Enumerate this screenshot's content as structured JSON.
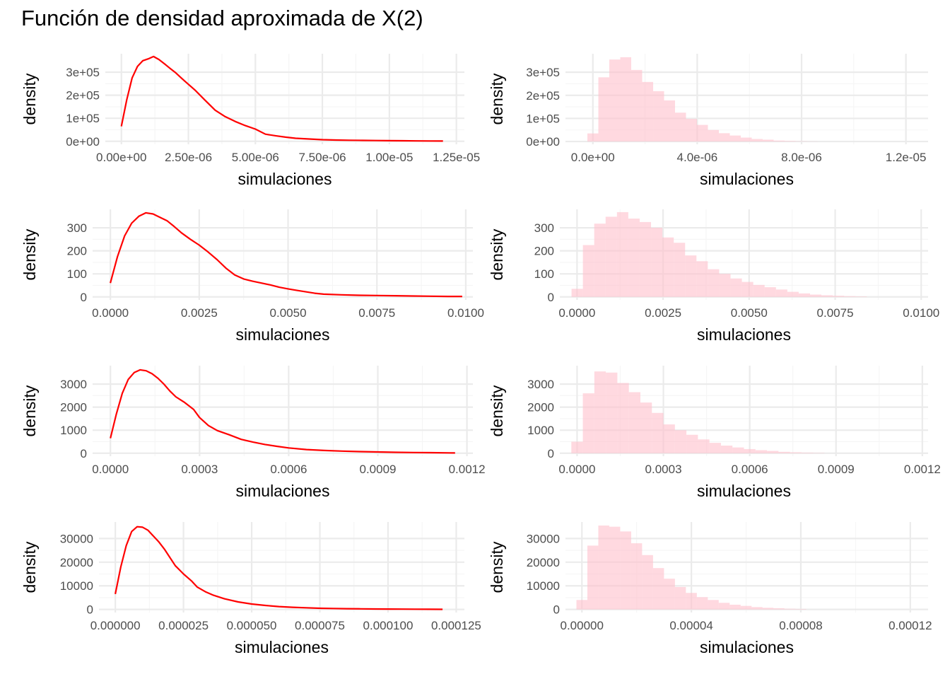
{
  "title": "Función de densidad aproximada de X(2)",
  "colors": {
    "density_line": "#ff0000",
    "histogram_fill": "#ffc0cb",
    "grid_major": "#ebebeb",
    "grid_minor": "#f5f5f5",
    "tick_text": "#4d4d4d"
  },
  "chart_data": [
    {
      "type": "line",
      "row": 1,
      "col": 1,
      "xlabel": "simulaciones",
      "ylabel": "density",
      "xlim": [
        -6e-07,
        1.28e-05
      ],
      "ylim": [
        -13000,
        380000
      ],
      "xticks": [
        0,
        2.5e-06,
        5e-06,
        7.5e-06,
        1e-05,
        1.25e-05
      ],
      "xtick_labels": [
        "0.00e+00",
        "2.50e-06",
        "5.00e-06",
        "7.50e-06",
        "1.00e-05",
        "1.25e-05"
      ],
      "yticks": [
        0,
        100000,
        200000,
        300000
      ],
      "ytick_labels": [
        "0e+00",
        "1e+05",
        "2e+05",
        "3e+05"
      ],
      "grid": true,
      "x": [
        0,
        2e-07,
        4e-07,
        6e-07,
        8e-07,
        1e-06,
        1.2e-06,
        1.4e-06,
        1.6e-06,
        1.8e-06,
        2e-06,
        2.375e-06,
        2.75e-06,
        3.125e-06,
        3.5e-06,
        3.875e-06,
        4.25e-06,
        4.625e-06,
        5e-06,
        5.375e-06,
        5.75e-06,
        6.125e-06,
        6.5e-06,
        7e-06,
        7.5e-06,
        8e-06,
        8.5e-06,
        9e-06,
        9.5e-06,
        1e-05,
        1.05e-05,
        1.1e-05,
        1.15e-05,
        1.2e-05
      ],
      "y": [
        65000,
        180000,
        275000,
        325000,
        350000,
        358000,
        368000,
        355000,
        337000,
        318000,
        300000,
        260000,
        222000,
        178000,
        135000,
        107000,
        86000,
        68000,
        53000,
        31000,
        24000,
        18000,
        13000,
        10000,
        7000,
        5500,
        4500,
        3800,
        3200,
        2800,
        2200,
        1800,
        1500,
        1200
      ]
    },
    {
      "type": "bar",
      "row": 1,
      "col": 2,
      "xlabel": "simulaciones",
      "ylabel": "density",
      "xlim": [
        -1.05e-06,
        1.285e-05
      ],
      "ylim": [
        -12000,
        380000
      ],
      "xticks": [
        0,
        4e-06,
        8e-06,
        1.2e-05
      ],
      "xtick_labels": [
        "0.0e+00",
        "4.0e-06",
        "8.0e-06",
        "1.2e-05"
      ],
      "yticks": [
        0,
        100000,
        200000,
        300000
      ],
      "ytick_labels": [
        "0e+00",
        "1e+05",
        "2e+05",
        "3e+05"
      ],
      "grid": true,
      "bin_start": -2.1e-07,
      "bin_width": 4.2e-07,
      "values": [
        35000,
        278000,
        355000,
        365000,
        310000,
        258000,
        218000,
        178000,
        125000,
        98000,
        72000,
        50000,
        36000,
        26000,
        17000,
        11000,
        8000,
        4000,
        2500,
        1200,
        600
      ]
    },
    {
      "type": "line",
      "row": 2,
      "col": 1,
      "xlabel": "simulaciones",
      "ylabel": "density",
      "xlim": [
        -0.0005,
        0.0102
      ],
      "ylim": [
        -13,
        380
      ],
      "xticks": [
        0,
        0.0025,
        0.005,
        0.0075,
        0.01
      ],
      "xtick_labels": [
        "0.0000",
        "0.0025",
        "0.0050",
        "0.0075",
        "0.0100"
      ],
      "yticks": [
        0,
        100,
        200,
        300
      ],
      "ytick_labels": [
        "0",
        "100",
        "200",
        "300"
      ],
      "grid": true,
      "x": [
        0,
        0.0002,
        0.0004,
        0.0006,
        0.0008,
        0.001,
        0.0012,
        0.0014,
        0.0016,
        0.0018,
        0.002,
        0.00225,
        0.0025,
        0.00275,
        0.003,
        0.00325,
        0.0035,
        0.00375,
        0.004,
        0.00425,
        0.0045,
        0.00475,
        0.005,
        0.00525,
        0.0055,
        0.00575,
        0.006,
        0.0065,
        0.007,
        0.0075,
        0.008,
        0.0085,
        0.009,
        0.0095,
        0.0099
      ],
      "y": [
        60,
        175,
        265,
        320,
        350,
        365,
        360,
        345,
        330,
        305,
        278,
        250,
        225,
        195,
        162,
        125,
        95,
        78,
        68,
        60,
        52,
        42,
        35,
        28,
        22,
        16,
        12,
        9,
        7,
        6,
        5,
        4,
        3,
        2,
        2
      ]
    },
    {
      "type": "bar",
      "row": 2,
      "col": 2,
      "xlabel": "simulaciones",
      "ylabel": "density",
      "xlim": [
        -0.0005,
        0.0102
      ],
      "ylim": [
        -13,
        380
      ],
      "xticks": [
        0,
        0.0025,
        0.005,
        0.0075,
        0.01
      ],
      "xtick_labels": [
        "0.0000",
        "0.0025",
        "0.0050",
        "0.0075",
        "0.0100"
      ],
      "yticks": [
        0,
        100,
        200,
        300
      ],
      "ytick_labels": [
        "0",
        "100",
        "200",
        "300"
      ],
      "grid": true,
      "bin_start": -0.00016,
      "bin_width": 0.00033,
      "values": [
        35,
        225,
        318,
        348,
        368,
        340,
        325,
        300,
        258,
        235,
        180,
        155,
        120,
        100,
        80,
        65,
        52,
        42,
        32,
        22,
        15,
        10,
        7,
        5,
        3,
        2
      ]
    },
    {
      "type": "line",
      "row": 3,
      "col": 1,
      "xlabel": "simulaciones",
      "ylabel": "density",
      "xlim": [
        -6e-05,
        0.00122
      ],
      "ylim": [
        -130,
        3800
      ],
      "xticks": [
        0,
        0.0003,
        0.0006,
        0.0009,
        0.0012
      ],
      "xtick_labels": [
        "0.0000",
        "0.0003",
        "0.0006",
        "0.0009",
        "0.0012"
      ],
      "yticks": [
        0,
        1000,
        2000,
        3000
      ],
      "ytick_labels": [
        "0",
        "1000",
        "2000",
        "3000"
      ],
      "grid": true,
      "x": [
        0,
        2e-05,
        4e-05,
        6e-05,
        8e-05,
        0.0001,
        0.00012,
        0.00014,
        0.00016,
        0.00018,
        0.0002,
        0.00022,
        0.00025,
        0.00028,
        0.0003,
        0.00033,
        0.00036,
        0.0004,
        0.00044,
        0.00048,
        0.00052,
        0.00056,
        0.0006,
        0.00066,
        0.00072,
        0.00078,
        0.00084,
        0.0009,
        0.00096,
        0.00102,
        0.00108,
        0.00114,
        0.00116
      ],
      "y": [
        650,
        1700,
        2600,
        3200,
        3500,
        3620,
        3580,
        3450,
        3250,
        3000,
        2700,
        2450,
        2200,
        1900,
        1550,
        1200,
        980,
        800,
        600,
        480,
        380,
        300,
        230,
        160,
        120,
        90,
        70,
        55,
        40,
        30,
        22,
        15,
        12
      ]
    },
    {
      "type": "bar",
      "row": 3,
      "col": 2,
      "xlabel": "simulaciones",
      "ylabel": "density",
      "xlim": [
        -6e-05,
        0.00122
      ],
      "ylim": [
        -130,
        3800
      ],
      "xticks": [
        0,
        0.0003,
        0.0006,
        0.0009,
        0.0012
      ],
      "xtick_labels": [
        "0.0000",
        "0.0003",
        "0.0006",
        "0.0009",
        "0.0012"
      ],
      "yticks": [
        0,
        1000,
        2000,
        3000
      ],
      "ytick_labels": [
        "0",
        "1000",
        "2000",
        "3000"
      ],
      "grid": true,
      "bin_start": -2e-05,
      "bin_width": 4e-05,
      "values": [
        500,
        2600,
        3550,
        3500,
        3050,
        2650,
        2200,
        1750,
        1250,
        1000,
        800,
        600,
        450,
        330,
        250,
        180,
        130,
        100,
        60,
        40,
        25,
        15
      ]
    },
    {
      "type": "line",
      "row": 4,
      "col": 1,
      "xlabel": "simulaciones",
      "ylabel": "density",
      "xlim": [
        -6e-06,
        0.000128
      ],
      "ylim": [
        -1300,
        37000
      ],
      "xticks": [
        0,
        2.5e-05,
        5e-05,
        7.5e-05,
        0.0001,
        0.000125
      ],
      "xtick_labels": [
        "0.000000",
        "0.000025",
        "0.000050",
        "0.000075",
        "0.000100",
        "0.000125"
      ],
      "yticks": [
        0,
        10000,
        20000,
        30000
      ],
      "ytick_labels": [
        "0",
        "10000",
        "20000",
        "30000"
      ],
      "grid": true,
      "x": [
        0,
        2e-06,
        4e-06,
        6e-06,
        8e-06,
        1e-05,
        1.2e-05,
        1.4e-05,
        1.6e-05,
        1.8e-05,
        2e-05,
        2.2e-05,
        2.5e-05,
        2.8e-05,
        3e-05,
        3.3e-05,
        3.6e-05,
        4e-05,
        4.5e-05,
        5e-05,
        5.5e-05,
        6e-05,
        6.5e-05,
        7e-05,
        7.5e-05,
        8e-05,
        8.5e-05,
        9e-05,
        9.5e-05,
        0.0001,
        0.000105,
        0.00011,
        0.000115,
        0.00012
      ],
      "y": [
        6500,
        18000,
        27000,
        33000,
        35000,
        34800,
        33500,
        31000,
        28500,
        25500,
        22000,
        18500,
        15000,
        12000,
        9500,
        7500,
        6000,
        4500,
        3200,
        2300,
        1700,
        1200,
        900,
        700,
        500,
        400,
        320,
        260,
        200,
        160,
        130,
        100,
        80,
        60
      ]
    },
    {
      "type": "bar",
      "row": 4,
      "col": 2,
      "xlabel": "simulaciones",
      "ylabel": "density",
      "xlim": [
        -6e-06,
        0.0001265
      ],
      "ylim": [
        -1300,
        37000
      ],
      "xticks": [
        0,
        4e-05,
        8e-05,
        0.00012
      ],
      "xtick_labels": [
        "0.00000",
        "0.00004",
        "0.00008",
        "0.00012"
      ],
      "yticks": [
        0,
        10000,
        20000,
        30000
      ],
      "ytick_labels": [
        "0",
        "10000",
        "20000",
        "30000"
      ],
      "grid": true,
      "bin_start": -2e-06,
      "bin_width": 4e-06,
      "values": [
        4000,
        27000,
        35500,
        35000,
        33000,
        28000,
        23000,
        17500,
        13000,
        9500,
        7000,
        5200,
        4000,
        2800,
        2000,
        1500,
        1000,
        700,
        500,
        300,
        200
      ]
    }
  ]
}
